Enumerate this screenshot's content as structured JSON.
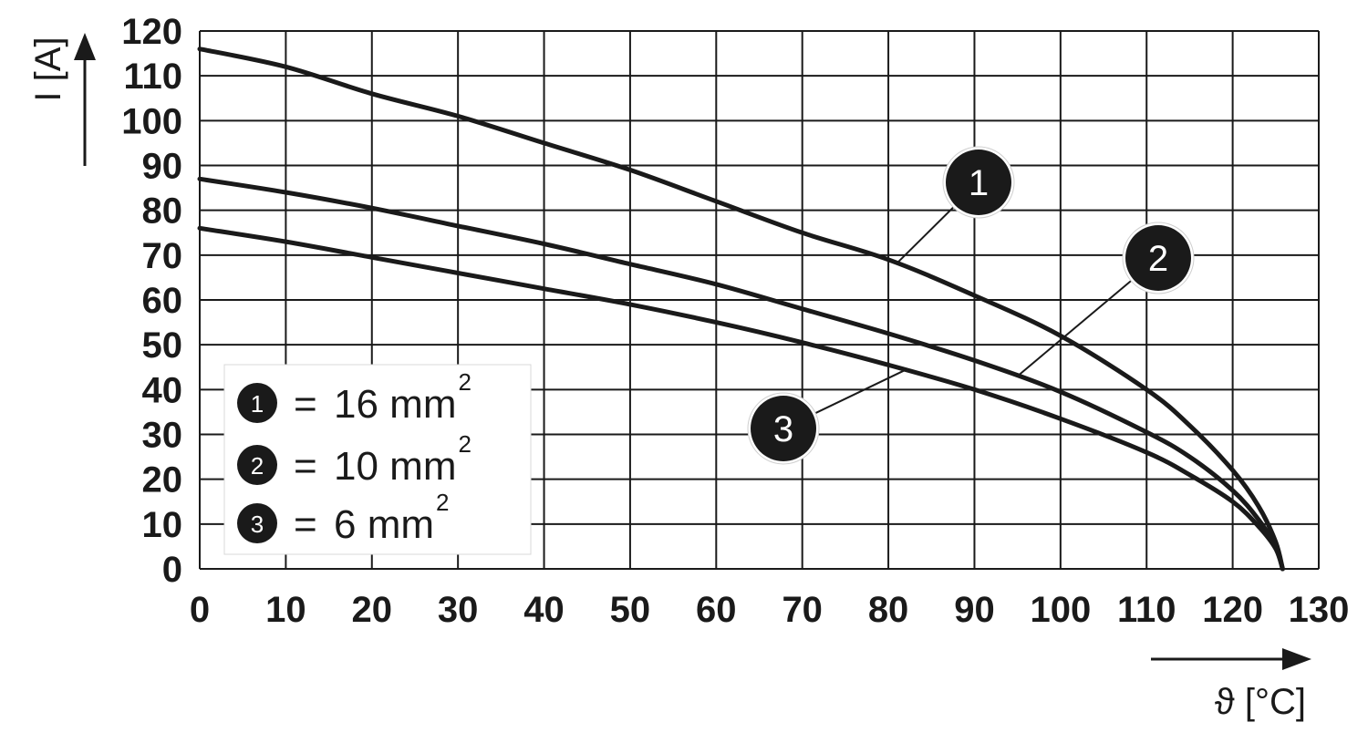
{
  "chart_data": {
    "type": "line",
    "ylabel": "I [A]",
    "xlabel": "ϑ [°C]",
    "xlim": [
      0,
      130
    ],
    "ylim": [
      0,
      120
    ],
    "x_ticks": [
      "0",
      "10",
      "20",
      "30",
      "40",
      "50",
      "60",
      "70",
      "80",
      "90",
      "100",
      "110",
      "120",
      "130"
    ],
    "y_ticks": [
      "0",
      "10",
      "20",
      "30",
      "40",
      "50",
      "60",
      "70",
      "80",
      "90",
      "100",
      "110",
      "120"
    ],
    "grid": true,
    "legend_placement": "bottom-left",
    "series": [
      {
        "name": "1",
        "legend_value": "16 mm",
        "legend_exp": "2",
        "x": [
          0,
          10,
          20,
          30,
          40,
          50,
          60,
          70,
          80,
          90,
          100,
          110,
          115,
          120,
          123,
          125,
          125.8
        ],
        "y": [
          116,
          112,
          106,
          101,
          95,
          89,
          82,
          75,
          69,
          61,
          52,
          40,
          32,
          22,
          14,
          6,
          0
        ]
      },
      {
        "name": "2",
        "legend_value": "10 mm",
        "legend_exp": "2",
        "x": [
          0,
          10,
          20,
          30,
          40,
          50,
          60,
          70,
          80,
          90,
          100,
          110,
          115,
          120,
          123,
          125,
          125.8
        ],
        "y": [
          87,
          84,
          80.5,
          76.5,
          72.5,
          68,
          63.5,
          58,
          52.5,
          46.5,
          39.5,
          30.5,
          25,
          17.5,
          11,
          5,
          0
        ]
      },
      {
        "name": "3",
        "legend_value": "6 mm",
        "legend_exp": "2",
        "x": [
          0,
          10,
          20,
          30,
          40,
          50,
          60,
          70,
          80,
          90,
          100,
          110,
          115,
          120,
          123,
          125,
          125.8
        ],
        "y": [
          76,
          73,
          69.5,
          66,
          62.5,
          59,
          55,
          50.5,
          45.5,
          40,
          33.5,
          26,
          21,
          15,
          9.5,
          4.5,
          0
        ]
      }
    ],
    "callouts": [
      {
        "label": "1",
        "line_x": 81
      },
      {
        "label": "2",
        "line_x": 95
      },
      {
        "label": "3",
        "line_x": 82
      }
    ]
  },
  "legend": {
    "eq_sign": "="
  }
}
